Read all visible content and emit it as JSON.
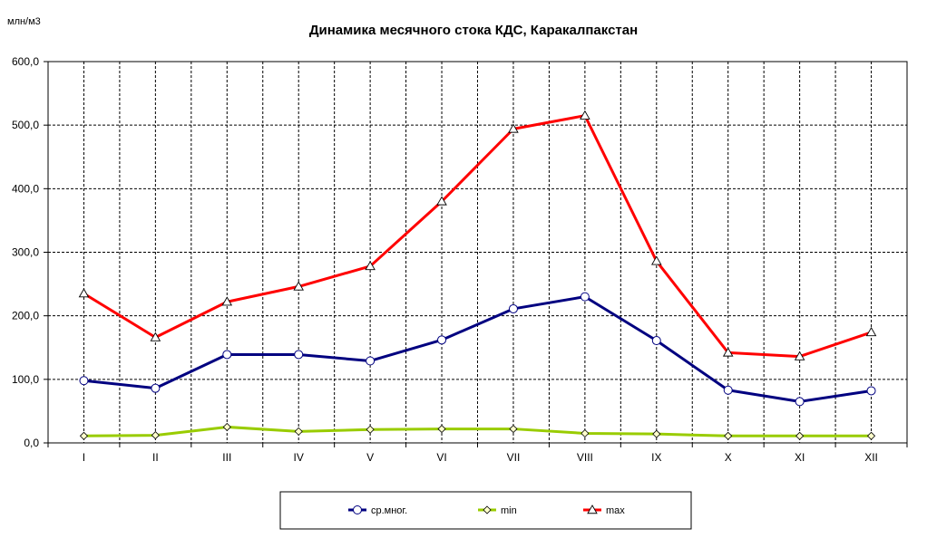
{
  "chart_data": {
    "type": "line",
    "title": "Динамика месячного стока КДС, Каракалпакстан",
    "ylabel": "млн/м3",
    "xlabel": "",
    "categories": [
      "I",
      "II",
      "III",
      "IV",
      "V",
      "VI",
      "VII",
      "VIII",
      "IX",
      "X",
      "XI",
      "XII"
    ],
    "ylim": [
      0,
      600
    ],
    "yticks": [
      "0,0",
      "100,0",
      "200,0",
      "300,0",
      "400,0",
      "500,0",
      "600,0"
    ],
    "grid": true,
    "legend_position": "bottom",
    "series": [
      {
        "name": "ср.мног.",
        "color": "#000080",
        "marker": "circle",
        "values": [
          98,
          86,
          139,
          139,
          129,
          162,
          211,
          230,
          161,
          83,
          65,
          82
        ]
      },
      {
        "name": "min",
        "color": "#99CC00",
        "marker": "diamond",
        "values": [
          11,
          12,
          25,
          18,
          21,
          22,
          22,
          15,
          14,
          11,
          11,
          11
        ]
      },
      {
        "name": "max",
        "color": "#FF0000",
        "marker": "triangle",
        "values": [
          235,
          166,
          222,
          246,
          278,
          380,
          494,
          515,
          286,
          142,
          136,
          174
        ]
      }
    ]
  }
}
